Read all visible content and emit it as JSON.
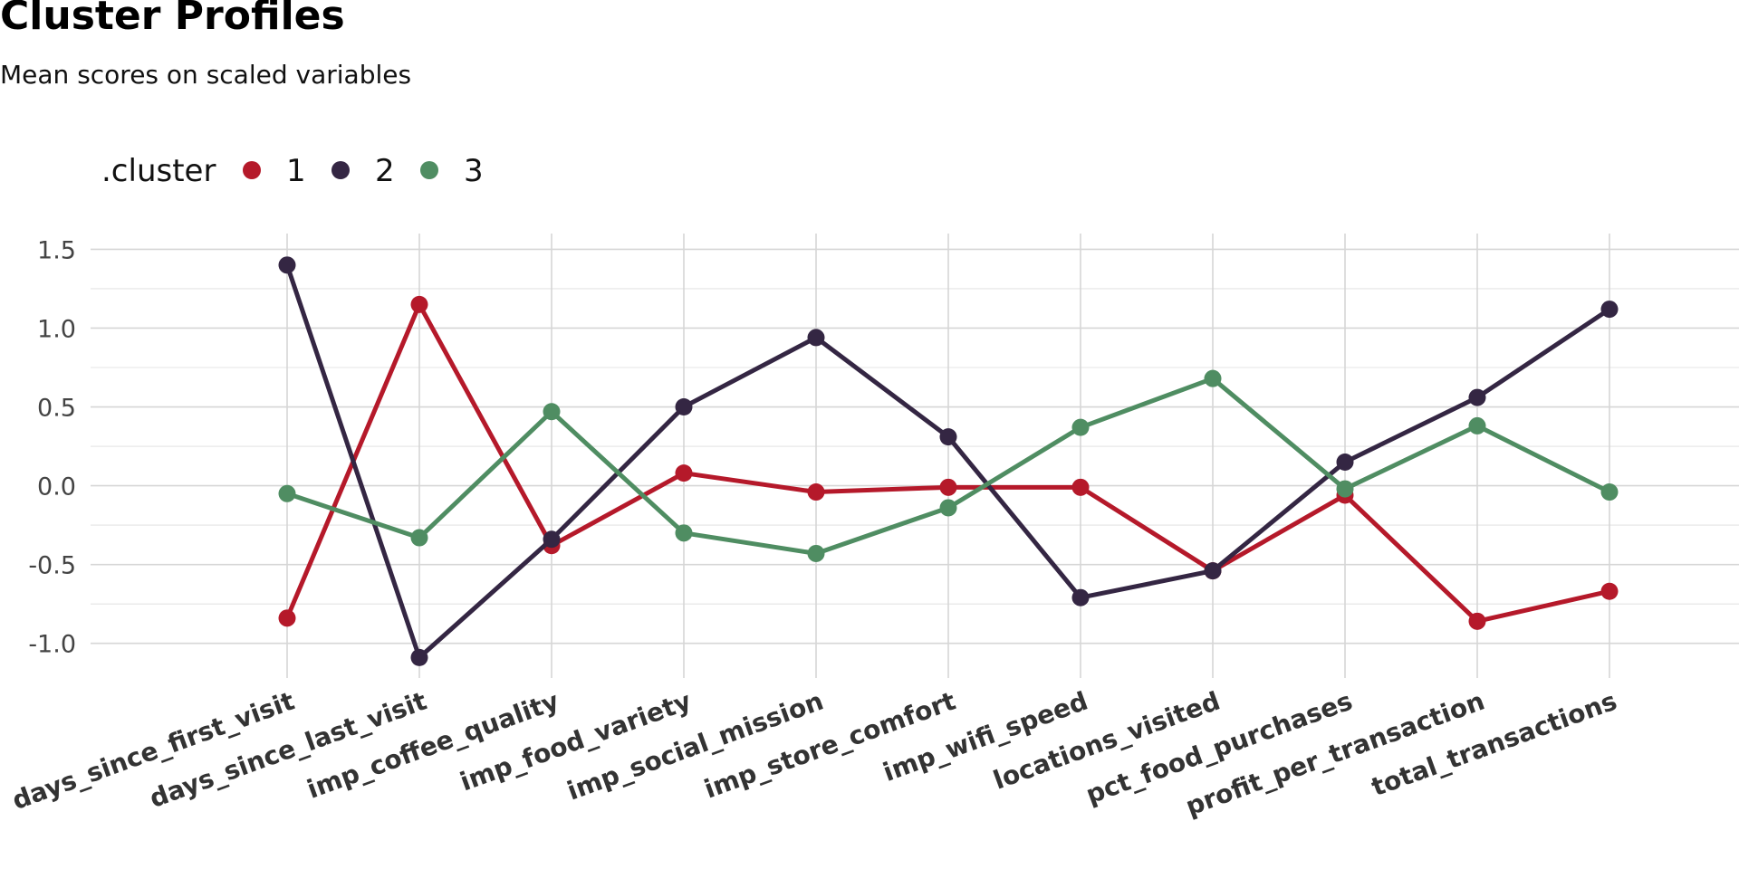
{
  "chart_data": {
    "type": "line",
    "title": "Cluster Profiles",
    "subtitle": "Mean scores on scaled variables",
    "legend_title": ".cluster",
    "legend_position": "top-left",
    "grid": true,
    "x": [
      "days_since_first_visit",
      "days_since_last_visit",
      "imp_coffee_quality",
      "imp_food_variety",
      "imp_social_mission",
      "imp_store_comfort",
      "imp_wifi_speed",
      "locations_visited",
      "pct_food_purchases",
      "profit_per_transaction",
      "total_transactions"
    ],
    "yticks": [
      "-1.0",
      "-0.5",
      "0.0",
      "0.5",
      "1.0",
      "1.5"
    ],
    "ylim": [
      -1.22,
      1.6
    ],
    "series": [
      {
        "name": "1",
        "color": "#b5192a",
        "values": [
          -0.84,
          1.15,
          -0.38,
          0.08,
          -0.04,
          -0.01,
          -0.01,
          -0.54,
          -0.06,
          -0.86,
          -0.67
        ]
      },
      {
        "name": "2",
        "color": "#342643",
        "values": [
          1.4,
          -1.09,
          -0.34,
          0.5,
          0.94,
          0.31,
          -0.71,
          -0.54,
          0.15,
          0.56,
          1.12
        ]
      },
      {
        "name": "3",
        "color": "#4f8d62",
        "values": [
          -0.05,
          -0.33,
          0.47,
          -0.3,
          -0.43,
          -0.14,
          0.37,
          0.68,
          -0.02,
          0.38,
          -0.04
        ]
      }
    ]
  }
}
